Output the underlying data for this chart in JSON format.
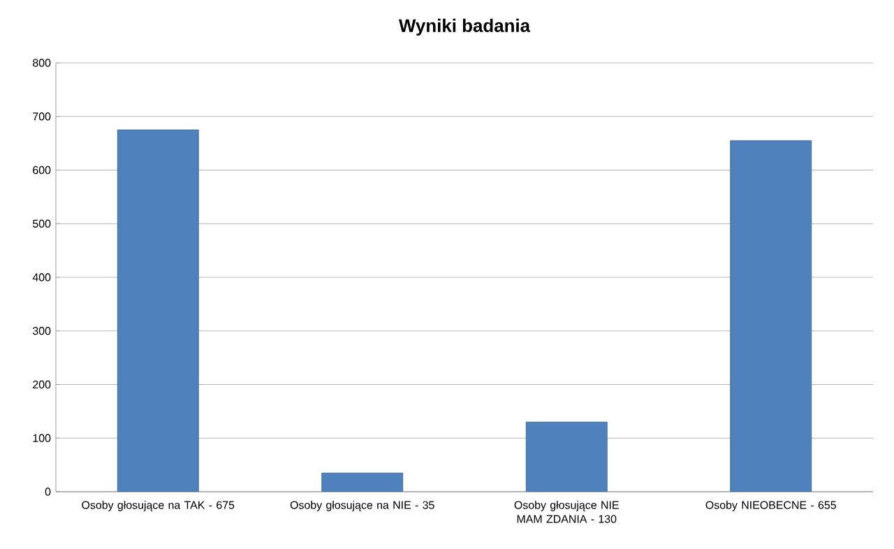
{
  "chart_data": {
    "type": "bar",
    "title": "Wyniki badania",
    "categories": [
      "Osoby głosujące na TAK - 675",
      "Osoby głosujące na NIE - 35",
      "Osoby głosujące NIE MAM ZDANIA - 130",
      "Osoby NIEOBECNE - 655"
    ],
    "values": [
      675,
      35,
      130,
      655
    ],
    "color": "#4f81bd",
    "ylim": [
      0,
      800
    ],
    "yticks": [
      0,
      100,
      200,
      300,
      400,
      500,
      600,
      700,
      800
    ],
    "grid": "y"
  }
}
